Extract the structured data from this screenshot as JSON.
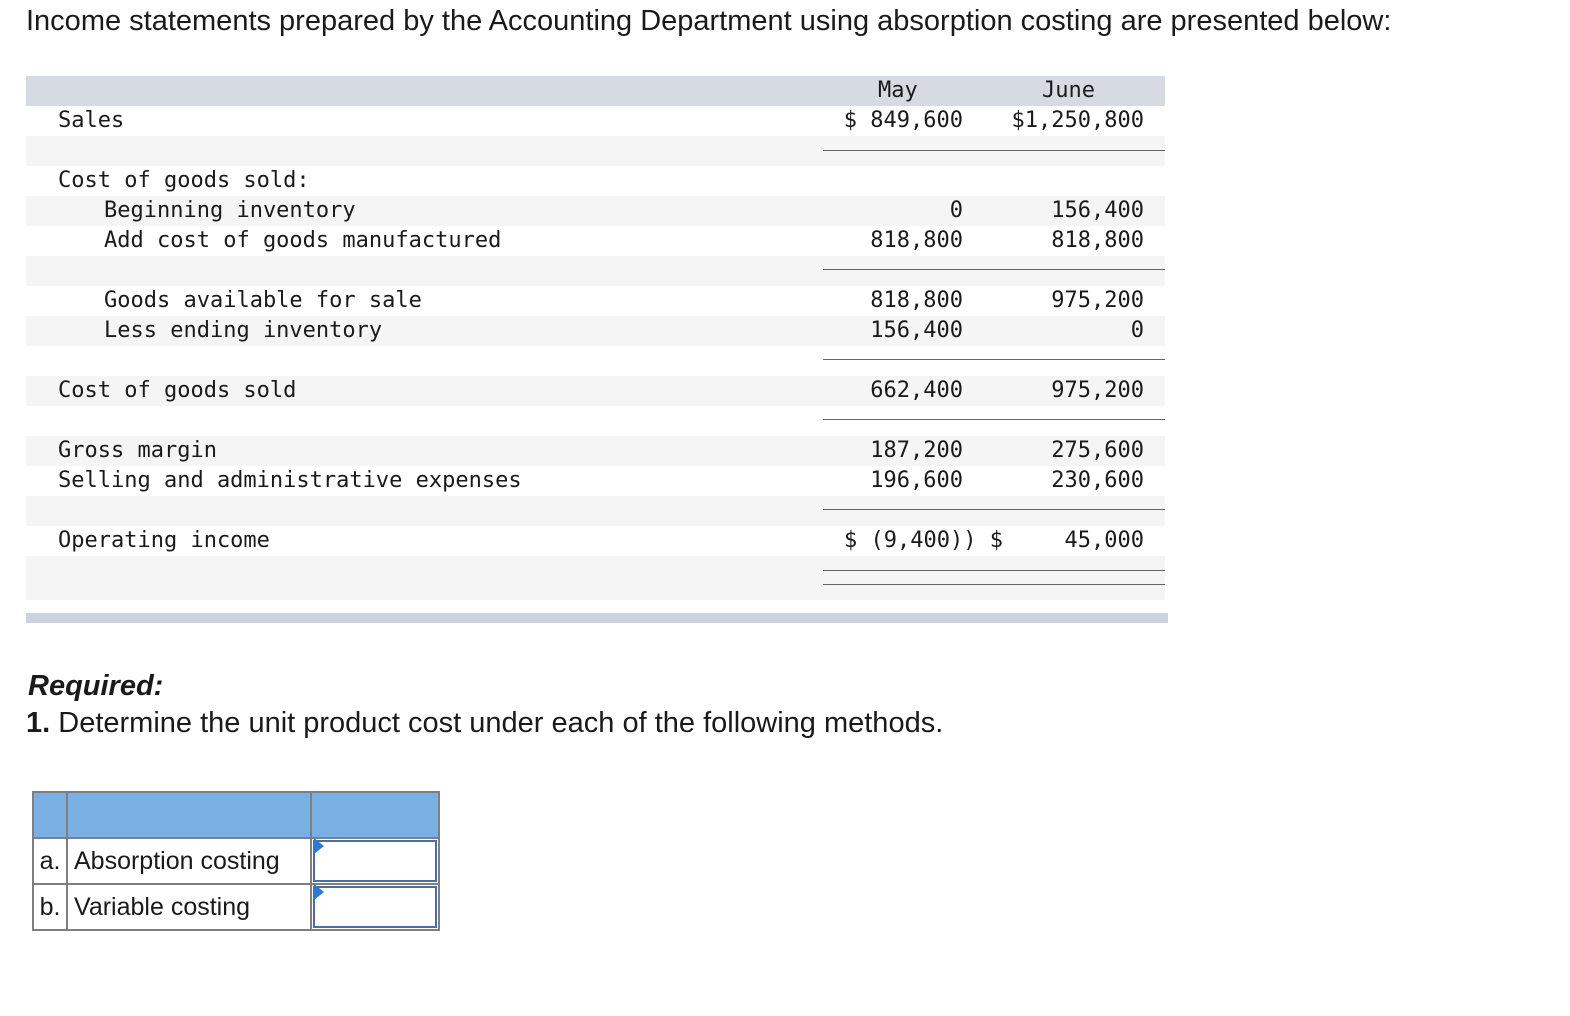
{
  "intro_text": "Income statements prepared by the Accounting Department using absorption costing are presented below:",
  "statement": {
    "columns": [
      "May",
      "June"
    ],
    "rows": {
      "sales": {
        "label": "Sales",
        "may": "$ 849,600",
        "june": "$1,250,800"
      },
      "cogs_header": {
        "label": "Cost of goods sold:"
      },
      "beginning_inventory": {
        "label": "Beginning inventory",
        "may": "0",
        "june": "156,400"
      },
      "add_cost_manufactured": {
        "label": "Add cost of goods manufactured",
        "may": "818,800",
        "june": "818,800"
      },
      "goods_available": {
        "label": "Goods available for sale",
        "may": "818,800",
        "june": "975,200"
      },
      "less_ending_inventory": {
        "label": "Less ending inventory",
        "may": "156,400",
        "june": "0"
      },
      "cost_of_goods_sold": {
        "label": "Cost of goods sold",
        "may": "662,400",
        "june": "975,200"
      },
      "gross_margin": {
        "label": "Gross margin",
        "may": "187,200",
        "june": "275,600"
      },
      "selling_admin": {
        "label": "Selling and administrative expenses",
        "may": "196,600",
        "june": "230,600"
      },
      "operating_income": {
        "label": "Operating income",
        "may": "$ (9,400)) $",
        "june": "45,000"
      }
    }
  },
  "required": {
    "title": "Required:",
    "number": "1.",
    "text": " Determine the unit product cost under each of the following methods."
  },
  "answer_table": {
    "rows": [
      {
        "letter": "a.",
        "label": "Absorption costing",
        "value": ""
      },
      {
        "letter": "b.",
        "label": "Variable costing",
        "value": ""
      }
    ]
  },
  "colors": {
    "header_bg": "#d6dbe3",
    "table_header": "#7aafe3",
    "input_border": "#4a6e9e",
    "marker": "#2b7bd6"
  }
}
